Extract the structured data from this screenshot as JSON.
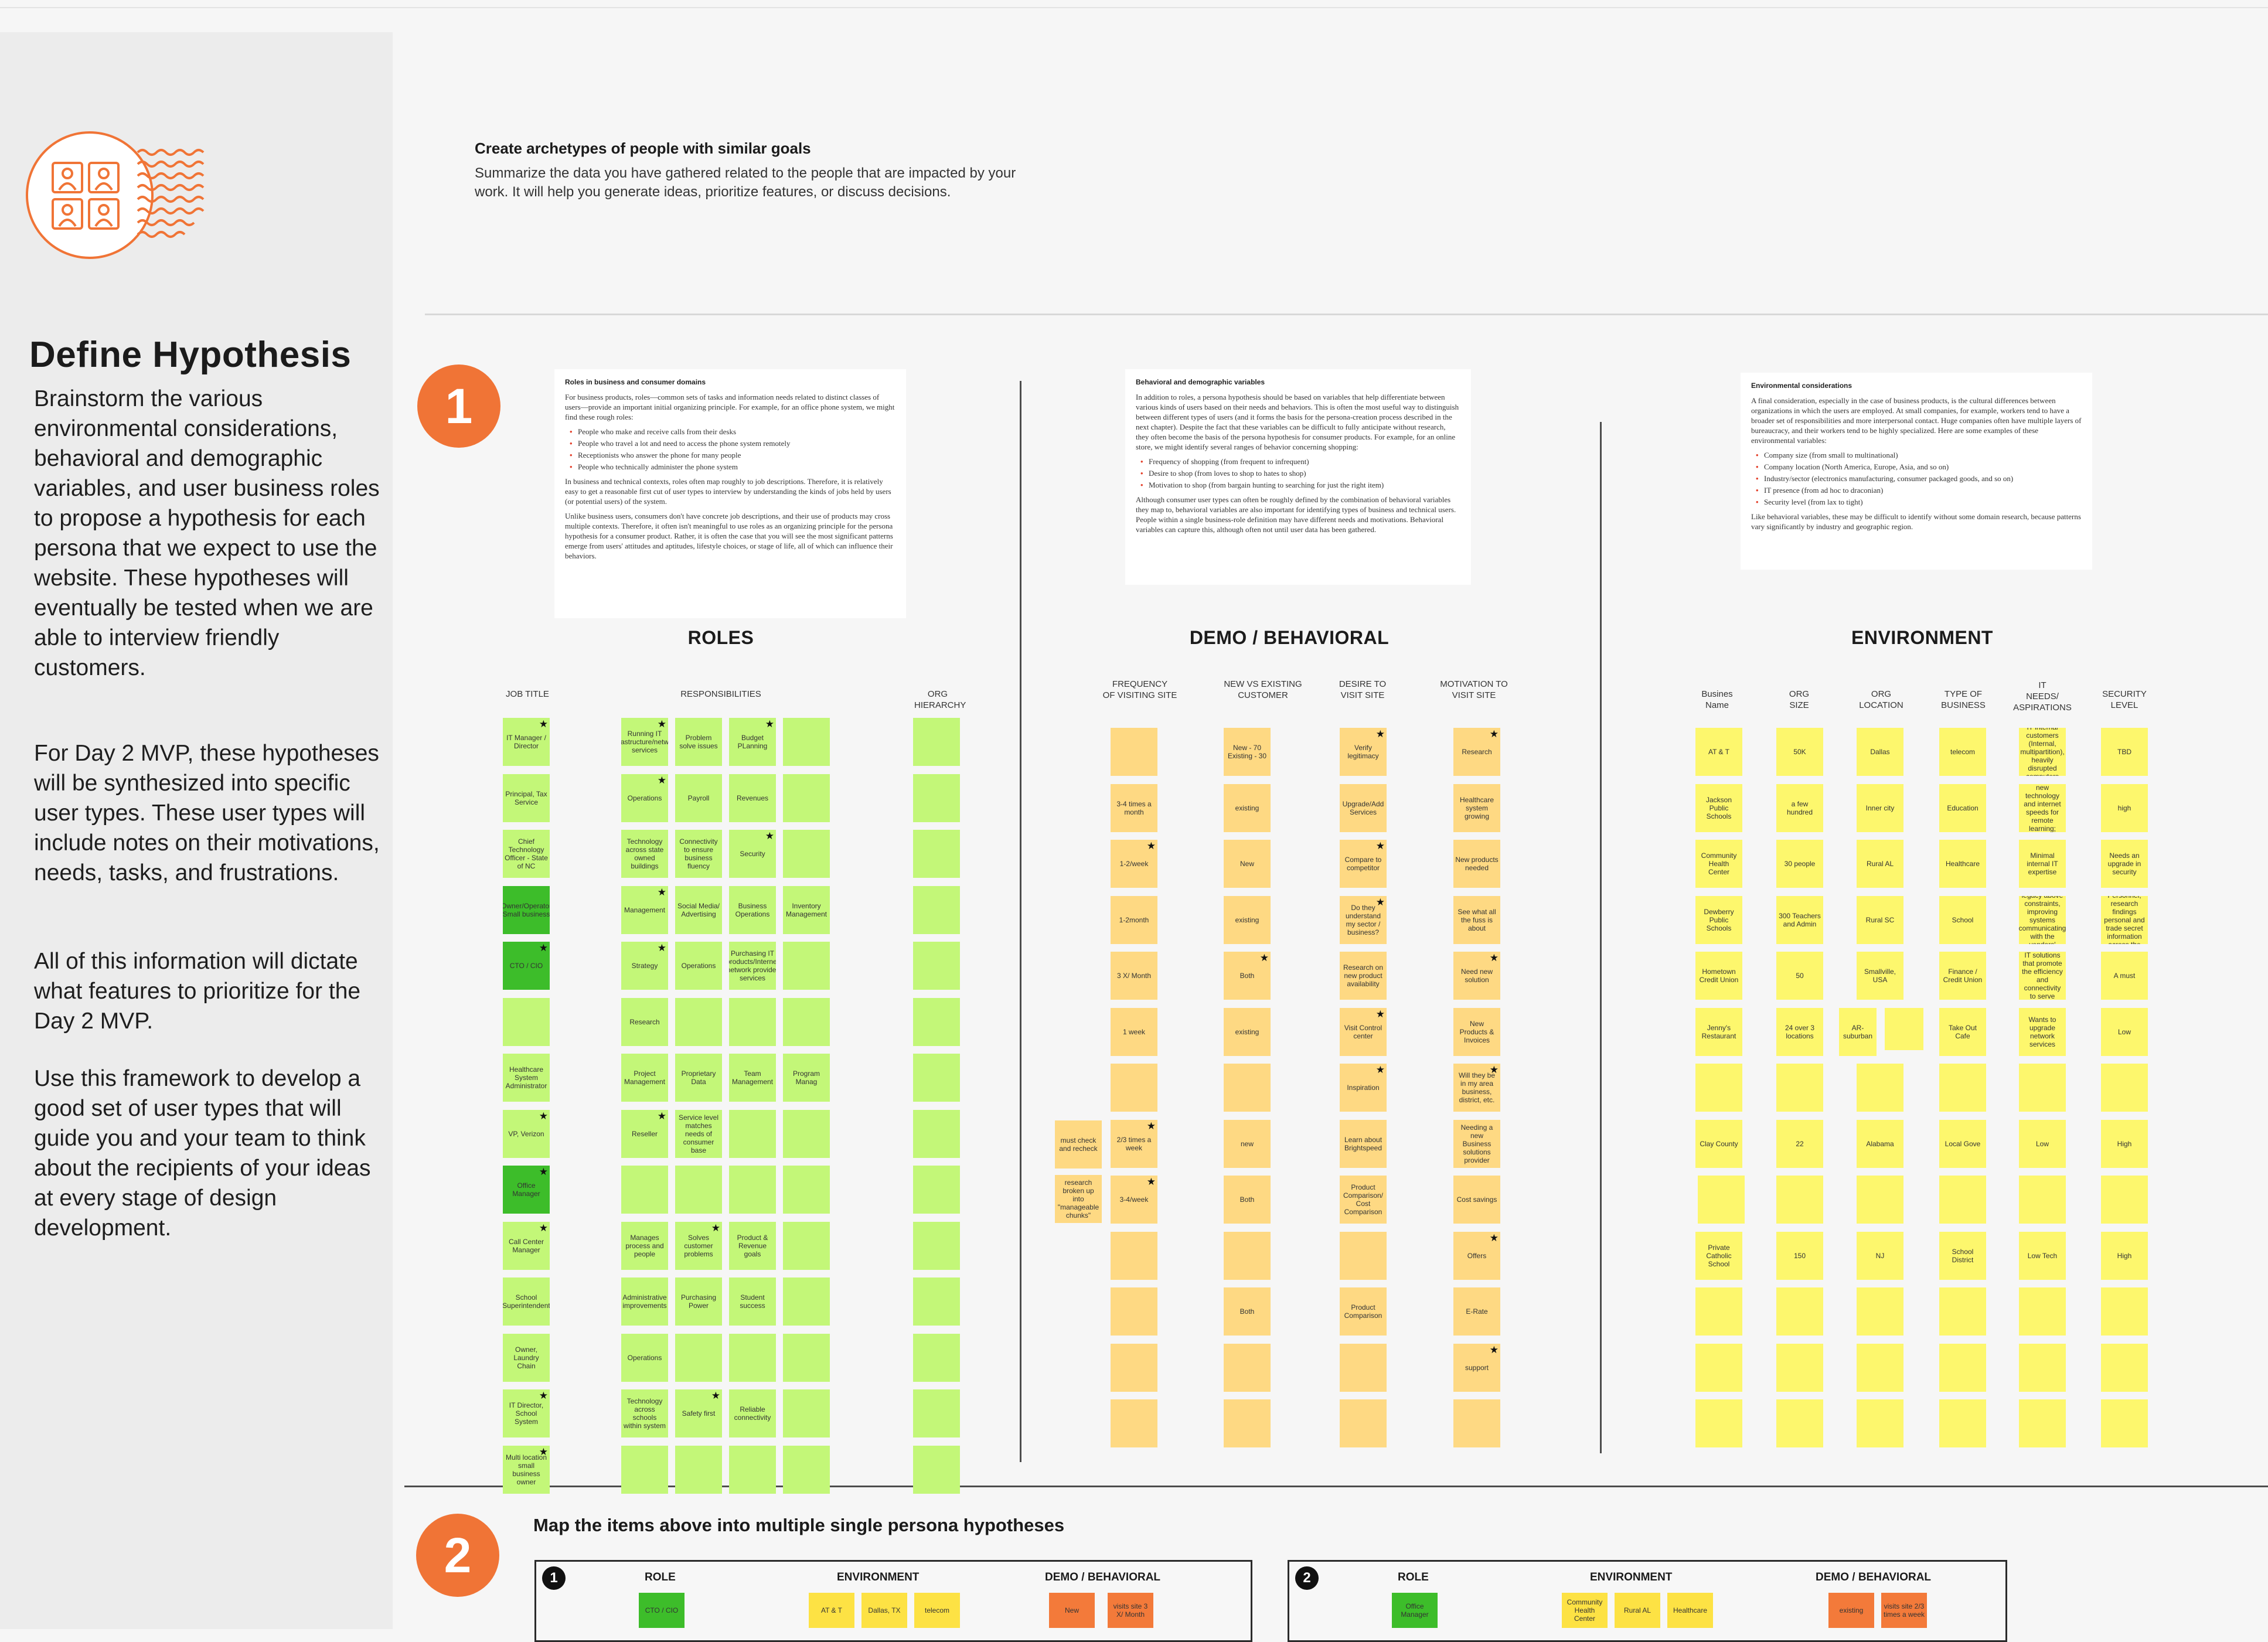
{
  "sidebar": {
    "title": "Define Hypothesis",
    "paragraphs": [
      "Brainstorm the various environmental considerations, behavioral and demographic variables, and user business roles to propose a hypothesis for each persona that we expect to use the website. These hypotheses will eventually be tested when we are able to interview friendly customers.",
      "For Day 2 MVP, these hypotheses will be synthesized into specific user types. These user types will include notes on their motivations, needs, tasks, and frustrations.",
      "All of this information will dictate what features to prioritize for the Day 2 MVP.",
      "Use this framework to develop a good set of user types that will guide you and your team to think about the recipients of your ideas at every stage of design development."
    ]
  },
  "intro": {
    "title": "Create archetypes of people with similar goals",
    "text": "Summarize the data you have gathered related to the people that are impacted by your work. It will help you generate ideas, prioritize features, or discuss decisions."
  },
  "step1": {
    "number": "1"
  },
  "step2": {
    "number": "2",
    "title": "Map the items above into multiple single persona hypotheses"
  },
  "reference_cards": {
    "roles": {
      "title": "Roles in business and consumer domains",
      "p1": "For business products, roles—common sets of tasks and information needs related to distinct classes of users—provide an important initial organizing principle. For example, for an office phone system, we might find these rough roles:",
      "items": [
        "People who make and receive calls from their desks",
        "People who travel a lot and need to access the phone system remotely",
        "Receptionists who answer the phone for many people",
        "People who technically administer the phone system"
      ],
      "p2": "In business and technical contexts, roles often map roughly to job descriptions. Therefore, it is relatively easy to get a reasonable first cut of user types to interview by understanding the kinds of jobs held by users (or potential users) of the system.",
      "p3": "Unlike business users, consumers don't have concrete job descriptions, and their use of products may cross multiple contexts. Therefore, it often isn't meaningful to use roles as an organizing principle for the persona hypothesis for a consumer product. Rather, it is often the case that you will see the most significant patterns emerge from users' attitudes and aptitudes, lifestyle choices, or stage of life, all of which can influence their behaviors."
    },
    "demo": {
      "title": "Behavioral and demographic variables",
      "p1": "In addition to roles, a persona hypothesis should be based on variables that help differentiate between various kinds of users based on their needs and behaviors. This is often the most useful way to distinguish between different types of users (and it forms the basis for the persona-creation process described in the next chapter). Despite the fact that these variables can be difficult to fully anticipate without research, they often become the basis of the persona hypothesis for consumer products. For example, for an online store, we might identify several ranges of behavior concerning shopping:",
      "items": [
        "Frequency of shopping (from frequent to infrequent)",
        "Desire to shop (from loves to shop to hates to shop)",
        "Motivation to shop (from bargain hunting to searching for just the right item)"
      ],
      "p2": "Although consumer user types can often be roughly defined by the combination of behavioral variables they map to, behavioral variables are also important for identifying types of business and technical users. People within a single business-role definition may have different needs and motivations. Behavioral variables can capture this, although often not until user data has been gathered."
    },
    "env": {
      "title": "Environmental considerations",
      "p1": "A final consideration, especially in the case of business products, is the cultural differences between organizations in which the users are employed. At small companies, for example, workers tend to have a broader set of responsibilities and more interpersonal contact. Huge companies often have multiple layers of bureaucracy, and their workers tend to be highly specialized. Here are some examples of these environmental variables:",
      "items": [
        "Company size (from small to multinational)",
        "Company location (North America, Europe, Asia, and so on)",
        "Industry/sector (electronics manufacturing, consumer packaged goods, and so on)",
        "IT presence (from ad hoc to draconian)",
        "Security level (from lax to tight)"
      ],
      "p2": "Like behavioral variables, these may be difficult to identify without some domain research, because patterns vary significantly by industry and geographic region."
    }
  },
  "sections": {
    "roles": "ROLES",
    "demo": "DEMO / BEHAVIORAL",
    "env": "ENVIRONMENT"
  },
  "column_headers": {
    "job_title": "JOB TITLE",
    "responsibilities": "RESPONSIBILITIES",
    "org_hierarchy": "ORG\nHIERARCHY",
    "frequency": "FREQUENCY\nOF VISITING SITE",
    "new_vs_existing": "NEW VS EXISTING\nCUSTOMER",
    "desire": "DESIRE TO\nVISIT SITE",
    "motivation": "MOTIVATION TO\nVISIT SITE",
    "business_name": "Busines\nName",
    "org_size": "ORG\nSIZE",
    "org_location": "ORG\nLOCATION",
    "type_of_business": "TYPE OF\nBUSINESS",
    "it_needs": "IT\nNEEDS/\nASPIRATIONS",
    "security_level": "SECURITY\nLEVEL"
  },
  "stickies": {
    "job_title": [
      "IT Manager / Director",
      "Principal, Tax Service",
      "Chief Technology Officer - State of NC",
      "Owner/Operator Small business",
      "CTO / CIO",
      "",
      "Healthcare System Administrator",
      "VP, Verizon",
      "Office Manager",
      "Call Center Manager",
      "School Superintendent",
      "Owner, Laundry Chain",
      "IT Director, School System",
      "Multi location small business owner"
    ],
    "resp_a": [
      "Running IT infrastructure/network services",
      "Operations",
      "Technology across state owned buildings",
      "Management",
      "Strategy",
      "Research",
      "Project Management",
      "Reseller",
      "",
      "Manages process and people",
      "Administrative improvements",
      "Operations",
      "Technology across schools within system",
      ""
    ],
    "resp_b": [
      "Problem solve issues",
      "Payroll",
      "Connectivity to ensure business fluency",
      "Social Media/ Advertising",
      "Operations",
      "",
      "Proprietary Data",
      "Service level matches needs of consumer base",
      "",
      "Solves customer problems",
      "Purchasing Power",
      "",
      "Safety first",
      ""
    ],
    "resp_c": [
      "Budget PLanning",
      "Revenues",
      "Security",
      "Business Operations",
      "Purchasing IT products/Internet network provider services",
      "",
      "Team Management",
      "",
      "",
      "Product & Revenue goals",
      "Student success",
      "",
      "Reliable connectivity",
      ""
    ],
    "resp_d": [
      "",
      "",
      "",
      "Inventory Management",
      "",
      "",
      "Program Manag",
      "",
      "",
      "",
      "",
      "",
      "",
      ""
    ],
    "freq_extra": [
      "must check and recheck",
      "research broken up into \"manageable chunks\""
    ],
    "frequency": [
      "",
      "3-4 times a month",
      "1-2/week",
      "1-2month",
      "3 X/ Month",
      "1 week",
      "",
      "2/3 times a week",
      "3-4/week",
      "",
      "",
      "",
      ""
    ],
    "new_vs_existing": [
      "New - 70 Existing - 30",
      "existing",
      "New",
      "existing",
      "Both",
      "existing",
      "",
      "new",
      "Both",
      "",
      "Both",
      "",
      ""
    ],
    "desire": [
      "Verify legitimacy",
      "Upgrade/Add Services",
      "Compare to competitor",
      "Do they understand my sector / business?",
      "Research on new product availability",
      "Visit Control center",
      "Inspiration",
      "Learn about Brightspeed",
      "Product Comparison/ Cost Comparison",
      "",
      "Product Comparison",
      "",
      ""
    ],
    "motivation": [
      "Research",
      "Healthcare system growing",
      "New products needed",
      "See what all the fuss is about",
      "Need new solution",
      "New Products & Invoices",
      "Will they be in my area business, district, etc.",
      "Needing a new Business solutions provider",
      "Cost savings",
      "Offers",
      "E-Rate",
      "support",
      ""
    ],
    "business_name": [
      "AT & T",
      "Jackson Public Schools",
      "Community Health Center",
      "Dewberry Public Schools",
      "Hometown Credit Union",
      "Jenny's Restaurant",
      "",
      "Clay County",
      "",
      "Private Catholic School",
      "",
      "",
      ""
    ],
    "org_size": [
      "50K",
      "a few hundred",
      "30 people",
      "300 Teachers and Admin",
      "50",
      "24 over 3 locations",
      "",
      "22",
      "",
      "150",
      "",
      "",
      ""
    ],
    "org_location": [
      "Dallas",
      "Inner city",
      "Rural AL",
      "Rural SC",
      "Smallville, USA",
      "AR-suburban",
      "",
      "Alabama",
      "",
      "NJ",
      "",
      "",
      ""
    ],
    "type_of_business": [
      "telecom",
      "Education",
      "Healthcare",
      "School",
      "Finance / Credit Union",
      "Take Out Cafe",
      "",
      "Local Gove",
      "",
      "School District",
      "",
      "",
      ""
    ],
    "it_needs": [
      "IT internal customers (Internal, multipartition), heavily disrupted computers",
      "Connected world; Need new technology and internet speeds for remote learning; Independent, secure, fast",
      "Minimal internal IT expertise",
      "Deal with the legacy above constraints, improving systems communicating with the vendors' providers",
      "Economical IT solutions that promote the efficiency and connectivity to serve customers",
      "Wants to upgrade network services",
      "",
      "Low",
      "",
      "Low Tech",
      "",
      "",
      ""
    ],
    "security_level": [
      "TBD",
      "high",
      "Needs an upgrade in security",
      "Legal, Personnel, research findings personal and trade secret information across the district",
      "A must",
      "Low",
      "",
      "High",
      "",
      "High",
      "",
      "",
      ""
    ],
    "ar_extra": ""
  },
  "persona_boxes": [
    {
      "number": "1",
      "role_head": "ROLE",
      "env_head": "ENVIRONMENT",
      "demo_head": "DEMO / BEHAVIORAL",
      "role": [
        "CTO / CIO"
      ],
      "env": [
        "AT & T",
        "Dallas, TX",
        "telecom"
      ],
      "demo": [
        "New",
        "visits site 3 X/ Month"
      ]
    },
    {
      "number": "2",
      "role_head": "ROLE",
      "env_head": "ENVIRONMENT",
      "demo_head": "DEMO / BEHAVIORAL",
      "role": [
        "Office Manager"
      ],
      "env": [
        "Community Health Center",
        "Rural AL",
        "Healthcare"
      ],
      "demo": [
        "existing",
        "visits site 2/3 times a week"
      ]
    }
  ],
  "colors": {
    "accent_orange": "#f07436",
    "sticky_light_green": "#c3f778",
    "sticky_dark_green": "#3dbd2a",
    "sticky_peach": "#fed983",
    "sticky_yellow": "#fdf76d",
    "sticky_orange": "#f37a3a"
  },
  "icons": {
    "logo": "people-grid-icon",
    "star": "star-icon"
  }
}
